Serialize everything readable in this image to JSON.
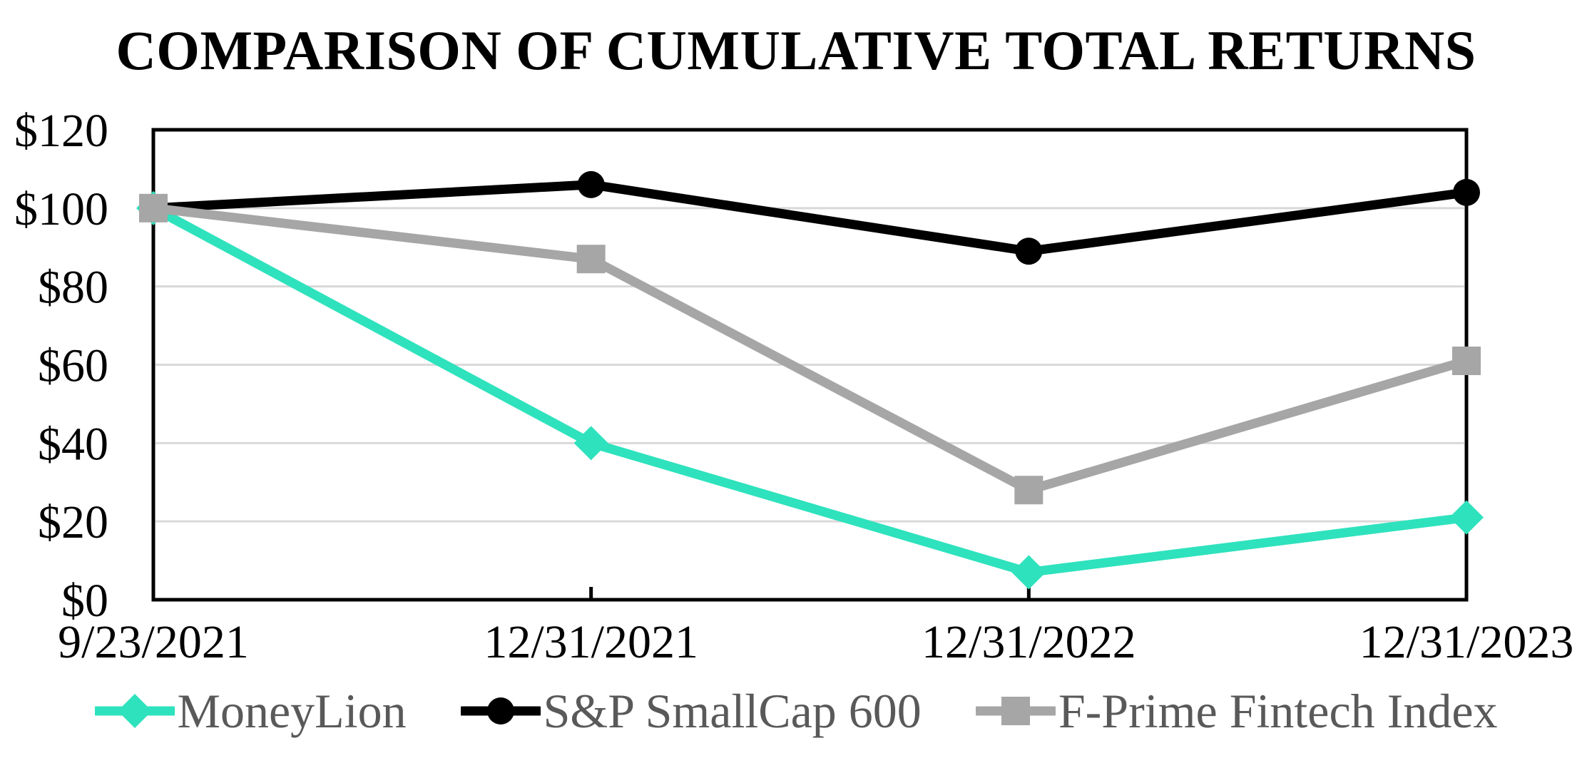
{
  "chart_data": {
    "type": "line",
    "title": "COMPARISON OF CUMULATIVE TOTAL RETURNS",
    "categories": [
      "9/23/2021",
      "12/31/2021",
      "12/31/2022",
      "12/31/2023"
    ],
    "series": [
      {
        "name": "MoneyLion",
        "color": "#2EE2BD",
        "marker": "diamond",
        "values": [
          100,
          40,
          7,
          21
        ]
      },
      {
        "name": "S&P SmallCap 600",
        "color": "#000000",
        "marker": "circle",
        "values": [
          100,
          106,
          89,
          104
        ]
      },
      {
        "name": "F-Prime Fintech Index",
        "color": "#A6A6A6",
        "marker": "square",
        "values": [
          100,
          87,
          28,
          61
        ]
      }
    ],
    "ylim": [
      0,
      120
    ],
    "y_ticks": [
      {
        "value": 120,
        "label": "$120"
      },
      {
        "value": 100,
        "label": "$100"
      },
      {
        "value": 80,
        "label": "$80"
      },
      {
        "value": 60,
        "label": "$60"
      },
      {
        "value": 40,
        "label": "$40"
      },
      {
        "value": 20,
        "label": "$20"
      },
      {
        "value": 0,
        "label": "$0"
      }
    ],
    "grid": "horizontal",
    "legend_position": "bottom",
    "colors": {
      "background": "#FFFFFF",
      "axis_border": "#000000",
      "gridline": "#D9D9D9",
      "tick_label_text": "#000000",
      "legend_text": "#595959"
    }
  }
}
